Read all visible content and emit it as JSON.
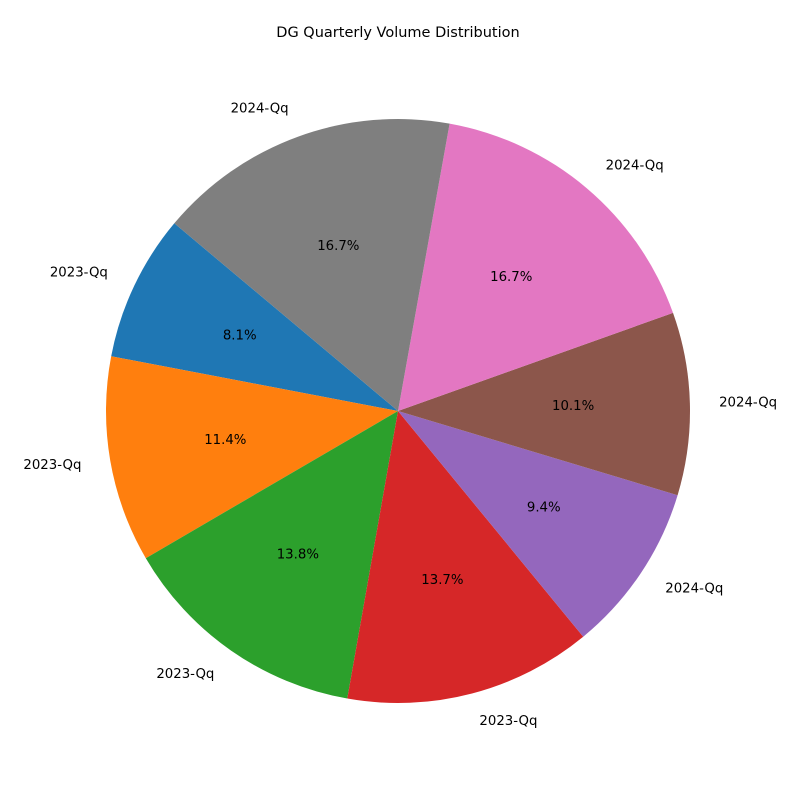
{
  "chart_data": {
    "type": "pie",
    "title": "DG Quarterly Volume Distribution",
    "start_angle": 140,
    "direction": "counterclockwise",
    "slices": [
      {
        "label": "2023-Qq",
        "value": 8.1,
        "pct_label": "8.1%",
        "color": "#1f77b4"
      },
      {
        "label": "2023-Qq",
        "value": 11.4,
        "pct_label": "11.4%",
        "color": "#ff7f0e"
      },
      {
        "label": "2023-Qq",
        "value": 13.8,
        "pct_label": "13.8%",
        "color": "#2ca02c"
      },
      {
        "label": "2023-Qq",
        "value": 13.7,
        "pct_label": "13.7%",
        "color": "#d62728"
      },
      {
        "label": "2024-Qq",
        "value": 9.4,
        "pct_label": "9.4%",
        "color": "#9467bd"
      },
      {
        "label": "2024-Qq",
        "value": 10.1,
        "pct_label": "10.1%",
        "color": "#8c564b"
      },
      {
        "label": "2024-Qq",
        "value": 16.7,
        "pct_label": "16.7%",
        "color": "#e377c2"
      },
      {
        "label": "2024-Qq",
        "value": 16.7,
        "pct_label": "16.7%",
        "color": "#7f7f7f"
      }
    ]
  }
}
